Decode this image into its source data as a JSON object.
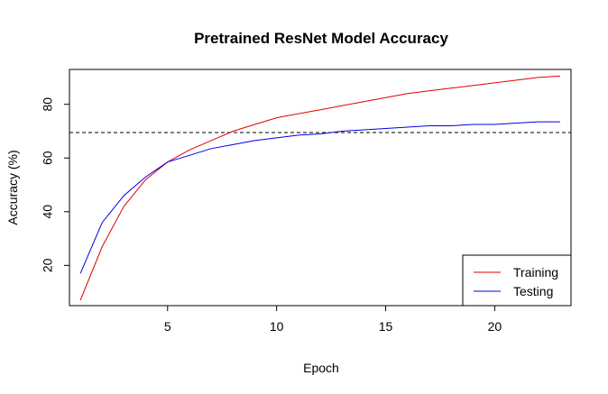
{
  "chart_data": {
    "type": "line",
    "title": "Pretrained ResNet Model Accuracy",
    "xlabel": "Epoch",
    "ylabel": "Accuracy (%)",
    "xlim": [
      0.5,
      23.5
    ],
    "ylim": [
      5,
      93
    ],
    "xticks": [
      5,
      10,
      15,
      20
    ],
    "yticks": [
      20,
      40,
      60,
      80
    ],
    "x": [
      1,
      2,
      3,
      4,
      5,
      6,
      7,
      8,
      9,
      10,
      11,
      12,
      13,
      14,
      15,
      16,
      17,
      18,
      19,
      20,
      21,
      22,
      23
    ],
    "series": [
      {
        "name": "Training",
        "color": "#e00000",
        "values": [
          7,
          27,
          42,
          52,
          58.5,
          63,
          66.5,
          70,
          72.5,
          75,
          76.5,
          78,
          79.5,
          81,
          82.5,
          84,
          85,
          86,
          87,
          88,
          89,
          90,
          90.5
        ]
      },
      {
        "name": "Testing",
        "color": "#0000e0",
        "values": [
          17,
          36,
          46,
          53,
          58.5,
          61,
          63.5,
          65,
          66.5,
          67.5,
          68.5,
          69,
          70,
          70.5,
          71,
          71.5,
          72,
          72,
          72.5,
          72.5,
          73,
          73.5,
          73.5
        ]
      }
    ],
    "reference_line": {
      "y": 69.5,
      "style": "dashed",
      "color": "#000000"
    },
    "legend": {
      "position": "bottom-right",
      "entries": [
        "Training",
        "Testing"
      ]
    },
    "grid": false
  }
}
